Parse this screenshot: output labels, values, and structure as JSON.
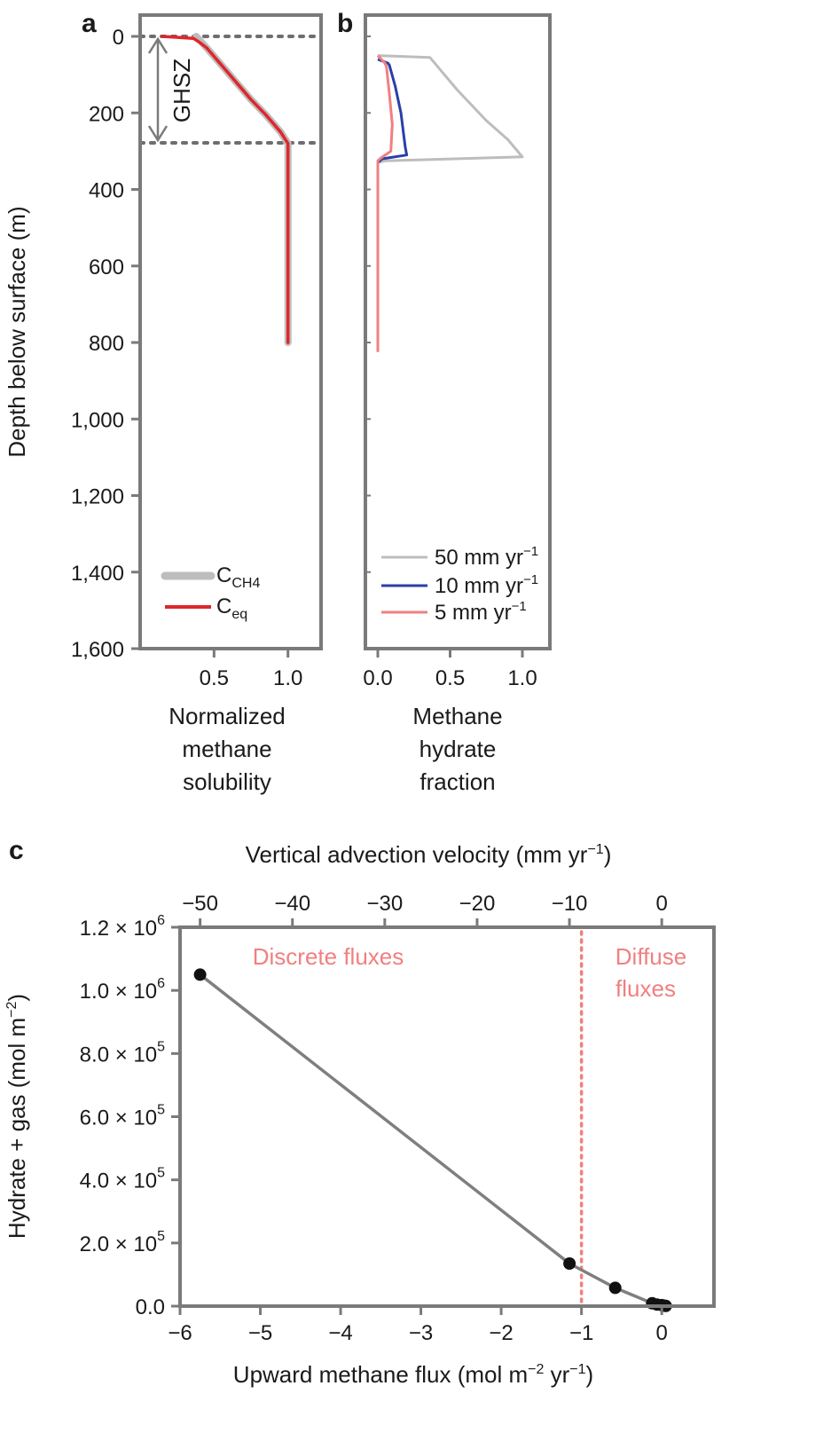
{
  "panels": {
    "a": {
      "label": "a"
    },
    "b": {
      "label": "b"
    },
    "c": {
      "label": "c"
    }
  },
  "shared": {
    "ylabel": "Depth below surface (m)",
    "yticks": [
      "0",
      "200",
      "400",
      "600",
      "800",
      "1,000",
      "1,200",
      "1,400",
      "1,600"
    ]
  },
  "colors": {
    "frame": "#7a7a7a",
    "grey_series": "#bdbdbd",
    "red_series": "#e0262a",
    "blue_series": "#2a3fa8",
    "pink_series": "#f08080",
    "fit_line": "#7f7f7f",
    "points": "#111111",
    "divider": "#f08080"
  },
  "chart_data": [
    {
      "panel": "a",
      "type": "line",
      "xlabel": [
        "Normalized",
        "methane",
        "solubility"
      ],
      "ylabel": "Depth below surface (m)",
      "xlim": [
        0,
        1.2
      ],
      "ylim": [
        1600,
        0
      ],
      "xticks": [
        "0.5",
        "1.0"
      ],
      "annotation": "GHSZ",
      "ghsz_depths": [
        0,
        280
      ],
      "series": [
        {
          "name": "C_CH4",
          "legend_main": "C",
          "legend_sub": "CH4",
          "x": [
            0.38,
            0.45,
            0.55,
            0.65,
            0.75,
            0.85,
            0.95,
            1.0,
            1.0
          ],
          "y": [
            0,
            30,
            75,
            120,
            165,
            205,
            250,
            280,
            800
          ]
        },
        {
          "name": "C_eq",
          "legend_main": "C",
          "legend_sub": "eq",
          "x": [
            0.15,
            0.36,
            0.4,
            0.45,
            0.55,
            0.65,
            0.75,
            0.85,
            0.95,
            1.0,
            1.0
          ],
          "y": [
            0,
            5,
            15,
            30,
            75,
            120,
            165,
            205,
            250,
            280,
            800
          ]
        }
      ]
    },
    {
      "panel": "b",
      "type": "line",
      "xlabel": [
        "Methane",
        "hydrate",
        "fraction"
      ],
      "xlim": [
        -0.1,
        1.2
      ],
      "ylim": [
        1600,
        0
      ],
      "xticks": [
        "0.0",
        "0.5",
        "1.0"
      ],
      "series": [
        {
          "name": "50 mm yr−1",
          "legend_main": "50 mm yr",
          "legend_sup": "−1",
          "x": [
            0,
            0.36,
            0.55,
            0.75,
            0.9,
            1.0,
            0.05,
            0
          ],
          "y": [
            50,
            55,
            140,
            220,
            270,
            315,
            325,
            330
          ]
        },
        {
          "name": "10 mm yr−1",
          "legend_main": "10 mm yr",
          "legend_sup": "−1",
          "x": [
            0,
            0.07,
            0.08,
            0.12,
            0.16,
            0.18,
            0.19,
            0.2,
            0.03,
            0,
            0
          ],
          "y": [
            60,
            70,
            75,
            130,
            200,
            260,
            290,
            310,
            320,
            330,
            350
          ]
        },
        {
          "name": "5 mm yr−1",
          "legend_main": "5 mm yr",
          "legend_sup": "−1",
          "x": [
            0,
            0.05,
            0.06,
            0.08,
            0.1,
            0.09,
            0.02,
            0,
            0,
            0
          ],
          "y": [
            50,
            70,
            80,
            150,
            230,
            300,
            318,
            325,
            350,
            825
          ]
        }
      ]
    },
    {
      "panel": "c",
      "type": "scatter",
      "xlabel": "Upward methane flux (mol m−2 yr−1)",
      "xlabel_parts": {
        "a": "Upward methane flux (mol m",
        "b": "−2",
        "c": " yr",
        "d": "−1",
        "e": ")"
      },
      "top_xlabel": "Vertical advection velocity (mm yr−1)",
      "top_xlabel_parts": {
        "a": "Vertical advection velocity (mm yr",
        "b": "−1",
        "c": ")"
      },
      "ylabel": "Hydrate + gas (mol m−2)",
      "ylabel_parts": {
        "a": "Hydrate + gas (mol m",
        "b": "−2",
        "c": ")"
      },
      "xlim": [
        -6,
        0.65
      ],
      "ylim": [
        0,
        1200000
      ],
      "xticks": [
        "−6",
        "−5",
        "−4",
        "−3",
        "−2",
        "−1",
        "0"
      ],
      "top_xticks": [
        "−50",
        "−40",
        "−30",
        "−20",
        "−10",
        "0"
      ],
      "yticks": [
        {
          "m": "0.0",
          "e": ""
        },
        {
          "m": "2.0 × 10",
          "e": "5"
        },
        {
          "m": "4.0 × 10",
          "e": "5"
        },
        {
          "m": "6.0 × 10",
          "e": "5"
        },
        {
          "m": "8.0 × 10",
          "e": "5"
        },
        {
          "m": "1.0 × 10",
          "e": "6"
        },
        {
          "m": "1.2 × 10",
          "e": "6"
        }
      ],
      "divider_x": -1,
      "annotations": {
        "left": "Discrete fluxes",
        "right_1": "Diffuse",
        "right_2": "fluxes"
      },
      "x": [
        -5.75,
        -1.15,
        -0.58,
        -0.12,
        -0.06,
        0.0,
        0.03,
        0.05
      ],
      "y": [
        1050000,
        135000,
        58000,
        9000,
        5000,
        3000,
        1500,
        500
      ]
    }
  ]
}
